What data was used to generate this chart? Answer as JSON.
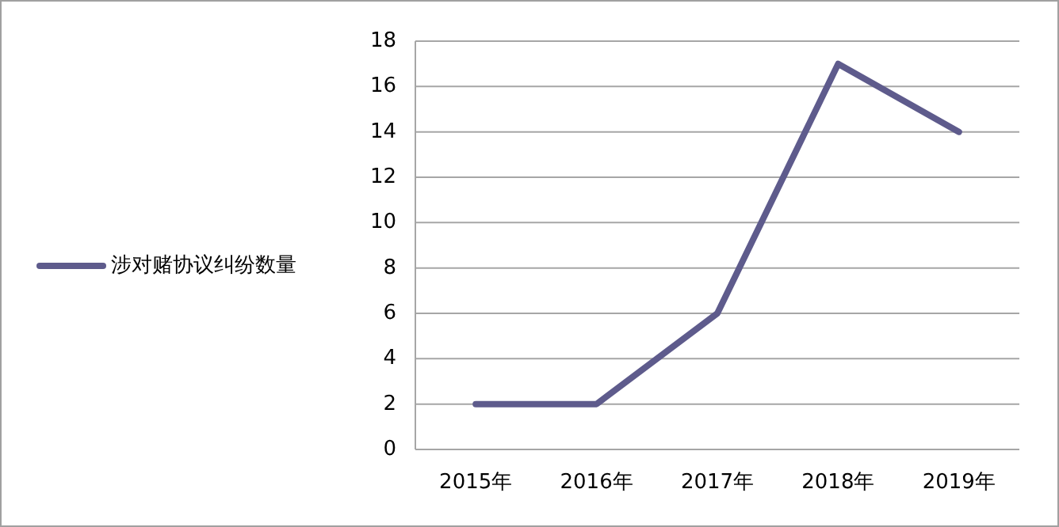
{
  "chart_data": {
    "type": "line",
    "categories": [
      "2015年",
      "2016年",
      "2017年",
      "2018年",
      "2019年"
    ],
    "series": [
      {
        "name": "涉对赌协议纠纷数量",
        "color": "#5e5b8c",
        "values": [
          2,
          2,
          6,
          17,
          14
        ]
      }
    ],
    "ylim": [
      0,
      18
    ],
    "yticks": [
      0,
      2,
      4,
      6,
      8,
      10,
      12,
      14,
      16,
      18
    ],
    "grid": "y",
    "legend": "left",
    "marker": "none",
    "line_style": "solid"
  }
}
